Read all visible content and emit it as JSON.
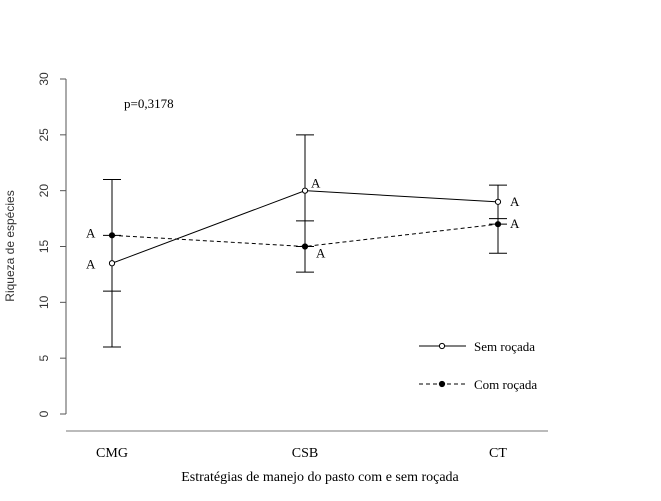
{
  "chart_data": {
    "type": "line",
    "categories": [
      "CMG",
      "CSB",
      "CT"
    ],
    "xlabel": "Estratégias de manejo do pasto com e sem roçada",
    "ylabel": "Riqueza de espécies",
    "ylim": [
      0,
      30
    ],
    "yticks": [
      0,
      5,
      10,
      15,
      20,
      25,
      30
    ],
    "annotation": "p=0,3178",
    "grid": false,
    "legend_position": "bottom-right",
    "series": [
      {
        "name": "Sem roçada",
        "line_style": "solid",
        "marker": "open-circle",
        "values": [
          13.5,
          20,
          19
        ],
        "error_low": [
          6,
          12.7,
          14.4
        ],
        "error_high": [
          21,
          25,
          20.5
        ],
        "labels": [
          "A",
          "A",
          "A"
        ]
      },
      {
        "name": "Com roçada",
        "line_style": "dashed",
        "marker": "filled-circle",
        "values": [
          16,
          15,
          17
        ],
        "error_low": [
          11,
          17.3,
          17.5
        ],
        "error_high": [
          16,
          15,
          17
        ],
        "labels": [
          "A",
          "A",
          "A"
        ]
      }
    ]
  }
}
